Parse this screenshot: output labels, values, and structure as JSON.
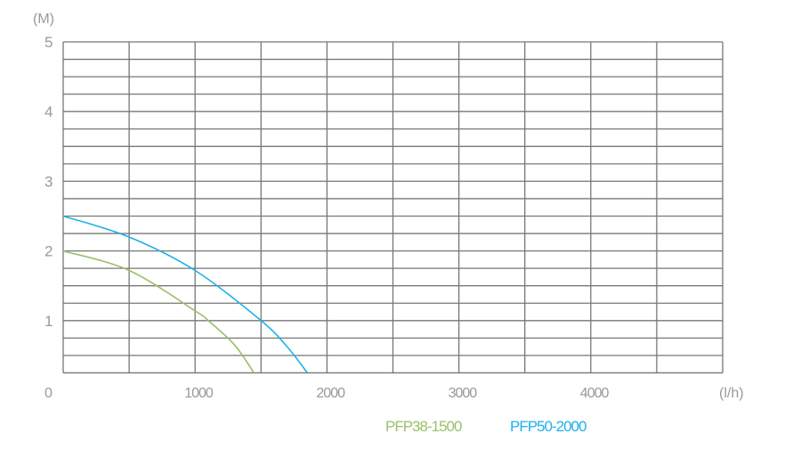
{
  "chart_data": {
    "type": "line",
    "title": "",
    "xlabel": "(l/h)",
    "ylabel": "(M)",
    "xlim": [
      0,
      5000
    ],
    "ylim": [
      0,
      5
    ],
    "grid": true,
    "x_ticks": [
      "0",
      "1000",
      "2000",
      "3000",
      "4000"
    ],
    "y_ticks": [
      "1",
      "2",
      "3",
      "4",
      "5"
    ],
    "legend_placement": "bottom",
    "series": [
      {
        "name": "PFP38-1500",
        "color": "#9cbf6a",
        "x": [
          0,
          500,
          1000,
          1100,
          1300,
          1446
        ],
        "y": [
          2.0,
          1.72,
          1.14,
          1.0,
          0.65,
          0.25
        ]
      },
      {
        "name": "PFP50-2000",
        "color": "#1cb1ea",
        "x": [
          0,
          500,
          1000,
          1500,
          1700,
          1851
        ],
        "y": [
          2.5,
          2.2,
          1.72,
          1.0,
          0.62,
          0.25
        ]
      }
    ]
  }
}
